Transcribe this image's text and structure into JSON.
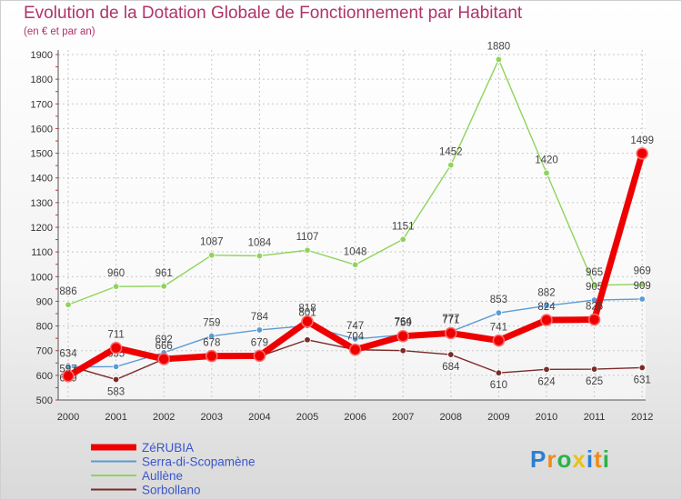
{
  "title": "Evolution de la Dotation Globale de Fonctionnement par Habitant",
  "subtitle": "(en € et par an)",
  "brand": {
    "text": "Proxiti",
    "letters": [
      "P",
      "r",
      "o",
      "x",
      "i",
      "t",
      "i"
    ],
    "colors": [
      "#2a7fd4",
      "#f08a1c",
      "#2ab24a",
      "#e8c21a",
      "#2a7fd4",
      "#f08a1c",
      "#2ab24a"
    ]
  },
  "chart_data": {
    "type": "line",
    "title": "Evolution de la Dotation Globale de Fonctionnement par Habitant",
    "ylabel": "(en € et par an)",
    "xlabel": "",
    "x": [
      "2000",
      "2001",
      "2002",
      "2003",
      "2004",
      "2005",
      "2006",
      "2007",
      "2008",
      "2009",
      "2010",
      "2011",
      "2012"
    ],
    "ylim": [
      500,
      1900
    ],
    "yticks": [
      500,
      600,
      700,
      800,
      900,
      1000,
      1100,
      1200,
      1300,
      1400,
      1500,
      1600,
      1700,
      1800,
      1900
    ],
    "grid": true,
    "legend_position": "bottom-left",
    "series": [
      {
        "name": "Aullène",
        "color": "#8fd45a",
        "values": [
          886,
          960,
          961,
          1087,
          1084,
          1107,
          1048,
          1151,
          1452,
          1880,
          1420,
          965,
          969
        ],
        "labels": [
          "886",
          "960",
          "961",
          "1087",
          "1084",
          "1107",
          "1048",
          "1151",
          "1452",
          "1880",
          "1420",
          "965",
          "969"
        ]
      },
      {
        "name": "Sorbollano",
        "color": "#7b2a2a",
        "values": [
          639,
          583,
          666,
          672,
          677,
          744,
          704,
          700,
          684,
          610,
          624,
          625,
          631
        ],
        "labels": [
          "639",
          "583",
          "",
          "",
          "",
          "",
          "",
          "",
          "684",
          "610",
          "624",
          "625",
          "631"
        ]
      },
      {
        "name": "Serra-di-Scopamène",
        "color": "#5a9bd5",
        "values": [
          634,
          635,
          692,
          759,
          784,
          801,
          747,
          764,
          777,
          853,
          882,
          905,
          909
        ],
        "labels": [
          "634",
          "635",
          "692",
          "759",
          "784",
          "801",
          "747",
          "764",
          "777",
          "853",
          "882",
          "905",
          "909"
        ]
      },
      {
        "name": "ZéRUBIA",
        "color": "#ee0000",
        "values": [
          597,
          711,
          666,
          678,
          679,
          818,
          704,
          759,
          771,
          741,
          824,
          826,
          1499
        ],
        "labels": [
          "597",
          "711",
          "666",
          "678",
          "679",
          "818",
          "704",
          "759",
          "771",
          "741",
          "824",
          "826",
          "1499"
        ]
      }
    ],
    "legend": [
      "ZéRUBIA",
      "Serra-di-Scopamène",
      "Aullène",
      "Sorbollano"
    ]
  }
}
